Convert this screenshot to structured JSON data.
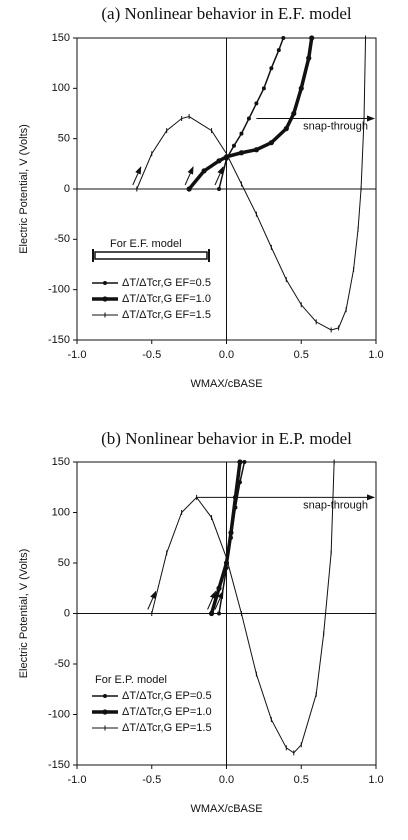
{
  "chart_data": [
    {
      "type": "line",
      "title": "(a) Nonlinear behavior in E.F. model",
      "ylabel": "Electric Potential, V (Volts)",
      "xlabel": "WMAX/cBASE",
      "xlim": [
        -1.0,
        1.0
      ],
      "ylim": [
        -150,
        150
      ],
      "xticks": [
        {
          "value": -1.0,
          "label": "-1.0"
        },
        -0.5,
        {
          "value": 0.0,
          "label": "0.0"
        },
        0.5,
        {
          "value": 1.0,
          "label": "1.0"
        }
      ],
      "yticks": [
        150,
        100,
        50,
        0,
        -50,
        -100,
        -150
      ],
      "legend_title": "For E.F. model",
      "annotation": "snap-through",
      "series": [
        {
          "name": "ΔT/ΔTcr,G EF=0.5",
          "color": "#111111",
          "x": [
            -0.05,
            0,
            0.05,
            0.1,
            0.15,
            0.2,
            0.25,
            0.3,
            0.35,
            0.38
          ],
          "values": [
            0,
            30,
            43,
            55,
            70,
            85,
            100,
            120,
            138,
            150
          ]
        },
        {
          "name": "ΔT/ΔTcr,G EF=1.0",
          "color": "#111111",
          "x": [
            -0.25,
            -0.15,
            -0.05,
            0,
            0.1,
            0.2,
            0.3,
            0.4,
            0.45,
            0.5,
            0.55,
            0.57
          ],
          "values": [
            0,
            18,
            28,
            32,
            36,
            39,
            46,
            60,
            75,
            100,
            130,
            150
          ]
        },
        {
          "name": "ΔT/ΔTcr,G EF=1.5",
          "color": "#111111",
          "x": [
            -0.6,
            -0.5,
            -0.4,
            -0.3,
            -0.25,
            -0.1,
            0,
            0.1,
            0.2,
            0.3,
            0.4,
            0.5,
            0.6,
            0.7,
            0.75,
            0.8,
            0.85,
            0.88,
            0.9,
            0.92,
            0.93
          ],
          "values": [
            0,
            35,
            58,
            70,
            72,
            58,
            35,
            5,
            -25,
            -58,
            -90,
            -115,
            -132,
            -140,
            -138,
            -120,
            -80,
            -40,
            0,
            70,
            150
          ]
        }
      ]
    },
    {
      "type": "line",
      "title": "(b) Nonlinear behavior in E.P. model",
      "ylabel": "Electric Potential, V (Volts)",
      "xlabel": "WMAX/cBASE",
      "xlim": [
        -1.0,
        1.0
      ],
      "ylim": [
        -150,
        150
      ],
      "xticks": [
        {
          "value": -1.0,
          "label": "-1.0"
        },
        -0.5,
        {
          "value": 0.0,
          "label": "0.0"
        },
        0.5,
        {
          "value": 1.0,
          "label": "1.0"
        }
      ],
      "yticks": [
        150,
        100,
        50,
        0,
        -50,
        -100,
        -150
      ],
      "legend_title": "For E.P. model",
      "annotation": "snap-through",
      "series": [
        {
          "name": "ΔT/ΔTcr,G EP=0.5",
          "color": "#111111",
          "x": [
            -0.05,
            0,
            0.03,
            0.06,
            0.09,
            0.12
          ],
          "values": [
            0,
            45,
            75,
            105,
            130,
            150
          ]
        },
        {
          "name": "ΔT/ΔTcr,G EP=1.0",
          "color": "#111111",
          "x": [
            -0.1,
            -0.05,
            0,
            0.03,
            0.06,
            0.09
          ],
          "values": [
            0,
            25,
            50,
            80,
            115,
            150
          ]
        },
        {
          "name": "ΔT/ΔTcr,G EP=1.5",
          "color": "#111111",
          "x": [
            -0.5,
            -0.4,
            -0.3,
            -0.2,
            -0.1,
            0,
            0.1,
            0.2,
            0.3,
            0.4,
            0.45,
            0.5,
            0.6,
            0.65,
            0.7,
            0.72
          ],
          "values": [
            0,
            60,
            100,
            115,
            95,
            55,
            0,
            -60,
            -105,
            -133,
            -138,
            -130,
            -80,
            -20,
            60,
            150
          ]
        }
      ]
    }
  ]
}
